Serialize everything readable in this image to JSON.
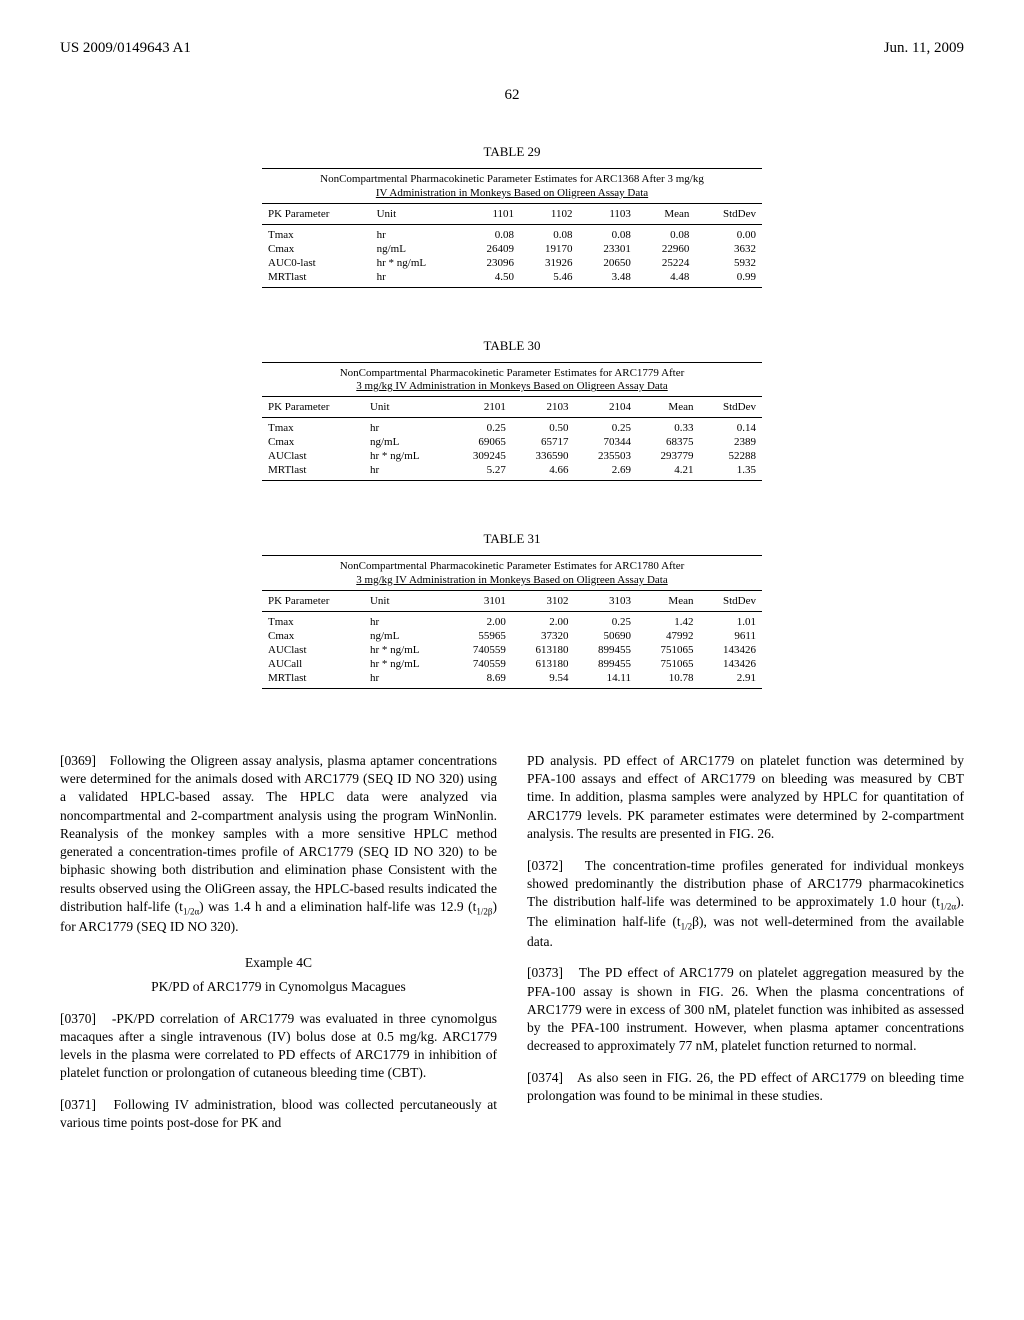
{
  "header": {
    "left": "US 2009/0149643 A1",
    "right": "Jun. 11, 2009"
  },
  "page_number": "62",
  "tables": [
    {
      "label": "TABLE 29",
      "caption_line1": "NonCompartmental Pharmacokinetic Parameter Estimates for ARC1368 After 3 mg/kg",
      "caption_line2": "IV Administration in Monkeys Based on Oligreen Assay Data",
      "headers": [
        "PK Parameter",
        "Unit",
        "1101",
        "1102",
        "1103",
        "Mean",
        "StdDev"
      ],
      "rows": [
        [
          "Tmax",
          "hr",
          "0.08",
          "0.08",
          "0.08",
          "0.08",
          "0.00"
        ],
        [
          "Cmax",
          "ng/mL",
          "26409",
          "19170",
          "23301",
          "22960",
          "3632"
        ],
        [
          "AUC0-last",
          "hr * ng/mL",
          "23096",
          "31926",
          "20650",
          "25224",
          "5932"
        ],
        [
          "MRTlast",
          "hr",
          "4.50",
          "5.46",
          "3.48",
          "4.48",
          "0.99"
        ]
      ]
    },
    {
      "label": "TABLE 30",
      "caption_line1": "NonCompartmental Pharmacokinetic Parameter Estimates for ARC1779 After",
      "caption_line2": "3 mg/kg IV Administration in Monkeys Based on Oligreen Assay Data",
      "headers": [
        "PK Parameter",
        "Unit",
        "2101",
        "2103",
        "2104",
        "Mean",
        "StdDev"
      ],
      "rows": [
        [
          "Tmax",
          "hr",
          "0.25",
          "0.50",
          "0.25",
          "0.33",
          "0.14"
        ],
        [
          "Cmax",
          "ng/mL",
          "69065",
          "65717",
          "70344",
          "68375",
          "2389"
        ],
        [
          "AUClast",
          "hr * ng/mL",
          "309245",
          "336590",
          "235503",
          "293779",
          "52288"
        ],
        [
          "MRTlast",
          "hr",
          "5.27",
          "4.66",
          "2.69",
          "4.21",
          "1.35"
        ]
      ]
    },
    {
      "label": "TABLE 31",
      "caption_line1": "NonCompartmental Pharmacokinetic Parameter Estimates for ARC1780 After",
      "caption_line2": "3 mg/kg IV Administration in Monkeys Based on Oligreen Assay Data",
      "headers": [
        "PK Parameter",
        "Unit",
        "3101",
        "3102",
        "3103",
        "Mean",
        "StdDev"
      ],
      "rows": [
        [
          "Tmax",
          "hr",
          "2.00",
          "2.00",
          "0.25",
          "1.42",
          "1.01"
        ],
        [
          "Cmax",
          "ng/mL",
          "55965",
          "37320",
          "50690",
          "47992",
          "9611"
        ],
        [
          "AUClast",
          "hr * ng/mL",
          "740559",
          "613180",
          "899455",
          "751065",
          "143426"
        ],
        [
          "AUCall",
          "hr * ng/mL",
          "740559",
          "613180",
          "899455",
          "751065",
          "143426"
        ],
        [
          "MRTlast",
          "hr",
          "8.69",
          "9.54",
          "14.11",
          "10.78",
          "2.91"
        ]
      ]
    }
  ],
  "paragraphs": {
    "p0369_num": "[0369]",
    "p0369": "Following the Oligreen assay analysis, plasma aptamer concentrations were determined for the animals dosed with ARC1779 (SEQ ID NO 320) using a validated HPLC-based assay. The HPLC data were analyzed via noncompartmental and 2-compartment analysis using the program WinNonlin. Reanalysis of the monkey samples with a more sensitive HPLC method generated a concentration-times profile of ARC1779 (SEQ ID NO 320) to be biphasic showing both distribution and elimination phase Consistent with the results observed using the OliGreen assay, the HPLC-based results indicated the distribution half-life (t",
    "p0369_tail": ") was 1.4 h and a elimination half-life was 12.9 (t",
    "p0369_tail2": ") for ARC1779 (SEQ ID NO 320).",
    "example_label": "Example 4C",
    "example_title": "PK/PD of ARC1779 in Cynomolgus Macagues",
    "p0370_num": "[0370]",
    "p0370": "-PK/PD correlation of ARC1779 was evaluated in three cynomolgus macaques after a single intravenous (IV) bolus dose at 0.5 mg/kg. ARC1779 levels in the plasma were correlated to PD effects of ARC1779 in inhibition of platelet function or prolongation of cutaneous bleeding time (CBT).",
    "p0371_num": "[0371]",
    "p0371": "Following IV administration, blood was collected percutaneously at various time points post-dose for PK and",
    "p0371_cont": "PD analysis. PD effect of ARC1779 on platelet function was determined by PFA-100 assays and effect of ARC1779 on bleeding was measured by CBT time. In addition, plasma samples were analyzed by HPLC for quantitation of ARC1779 levels. PK parameter estimates were determined by 2-compartment analysis. The results are presented in FIG. 26.",
    "p0372_num": "[0372]",
    "p0372": "The concentration-time profiles generated for individual monkeys showed predominantly the distribution phase of ARC1779 pharmacokinetics The distribution half-life was determined to be approximately 1.0 hour (t",
    "p0372_tail": "). The elimination half-life (t",
    "p0372_tail2": "β), was not well-determined from the available data.",
    "p0373_num": "[0373]",
    "p0373": "The PD effect of ARC1779 on platelet aggregation measured by the PFA-100 assay is shown in FIG. 26. When the plasma concentrations of ARC1779 were in excess of 300 nM, platelet function was inhibited as assessed by the PFA-100 instrument. However, when plasma aptamer concentrations decreased to approximately 77 nM, platelet function returned to normal.",
    "p0374_num": "[0374]",
    "p0374": "As also seen in FIG. 26, the PD effect of ARC1779 on bleeding time prolongation was found to be minimal in these studies."
  },
  "subscripts": {
    "half_alpha": "1/2α",
    "half_beta": "1/2β",
    "half": "1/2"
  }
}
